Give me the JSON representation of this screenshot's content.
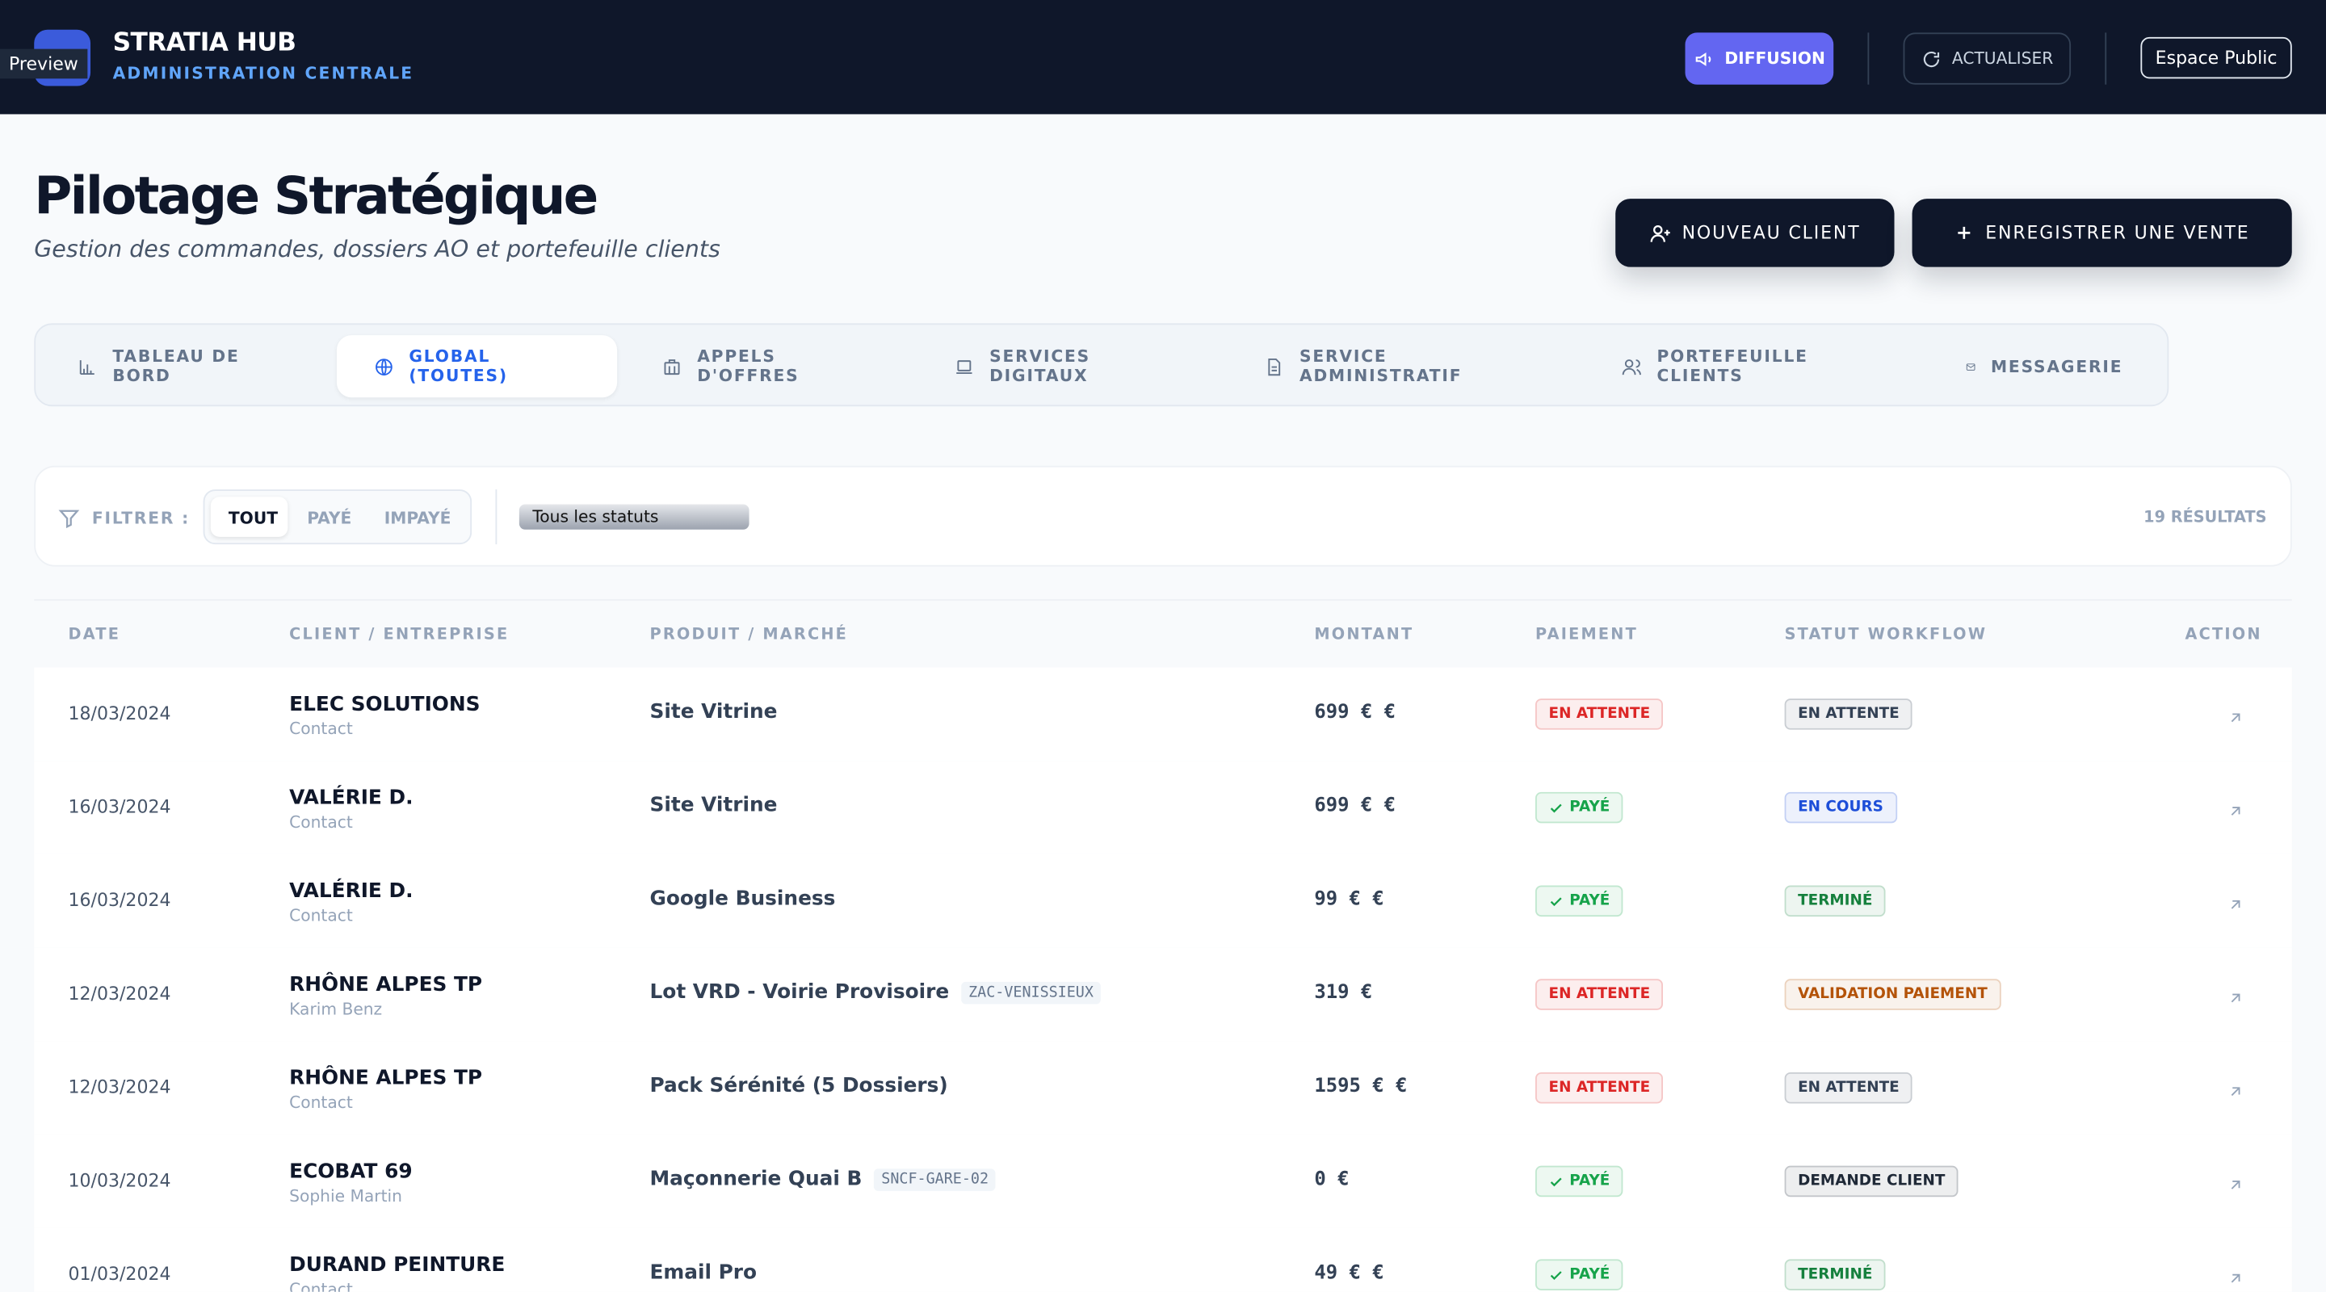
{
  "preview": "Preview",
  "header": {
    "title": "STRATIA HUB",
    "subtitle": "ADMINISTRATION CENTRALE",
    "buttons": [
      "DIFFUSION",
      "ACTUALISER",
      "Espace Public"
    ]
  },
  "page": {
    "title": "Pilotage Stratégique",
    "subtitle": "Gestion des commandes, dossiers AO et portefeuille clients",
    "actions": [
      "NOUVEAU CLIENT",
      "ENREGISTRER UNE VENTE"
    ]
  },
  "tabs": [
    "TABLEAU DE BORD",
    "GLOBAL (TOUTES)",
    "APPELS D'OFFRES",
    "SERVICES DIGITAUX",
    "SERVICE ADMINISTRATIF",
    "PORTEFEUILLE CLIENTS",
    "MESSAGERIE"
  ],
  "filter": {
    "label": "FILTRER :",
    "options": [
      "TOUT",
      "PAYÉ",
      "IMPAYÉ"
    ],
    "select": "Tous les statuts",
    "results": "19 RÉSULTATS"
  },
  "table": {
    "columns": [
      "DATE",
      "CLIENT / ENTREPRISE",
      "PRODUIT / MARCHÉ",
      "MONTANT",
      "PAIEMENT",
      "STATUT WORKFLOW",
      "ACTION"
    ],
    "rows": [
      {
        "date": "18/03/2024",
        "client": "ELEC SOLUTIONS",
        "contact": "Contact",
        "product": "Site Vitrine",
        "amount": "699 € €",
        "payment": {
          "text": "EN ATTENTE",
          "color": "#dc2626"
        },
        "workflow": {
          "text": "EN ATTENTE",
          "color": "#334155"
        }
      },
      {
        "date": "16/03/2024",
        "client": "VALÉRIE D.",
        "contact": "Contact",
        "product": "Site Vitrine",
        "amount": "699 € €",
        "payment": {
          "text": "PAYÉ",
          "color": "#16a34a",
          "check": true
        },
        "workflow": {
          "text": "EN COURS",
          "color": "#1d4ed8"
        }
      },
      {
        "date": "16/03/2024",
        "client": "VALÉRIE D.",
        "contact": "Contact",
        "product": "Google Business",
        "amount": "99 € €",
        "payment": {
          "text": "PAYÉ",
          "color": "#16a34a",
          "check": true
        },
        "workflow": {
          "text": "TERMINÉ",
          "color": "#15803d"
        }
      },
      {
        "date": "12/03/2024",
        "client": "RHÔNE ALPES TP",
        "contact": "Karim Benz",
        "product": "Lot VRD - Voirie Provisoire",
        "tag": "ZAC-VENISSIEUX",
        "amount": "319 €",
        "payment": {
          "text": "EN ATTENTE",
          "color": "#dc2626"
        },
        "workflow": {
          "text": "VALIDATION PAIEMENT",
          "color": "#b45309"
        }
      },
      {
        "date": "12/03/2024",
        "client": "RHÔNE ALPES TP",
        "contact": "Contact",
        "product": "Pack Sérénité (5 Dossiers)",
        "amount": "1595 € €",
        "payment": {
          "text": "EN ATTENTE",
          "color": "#dc2626"
        },
        "workflow": {
          "text": "EN ATTENTE",
          "color": "#334155"
        }
      },
      {
        "date": "10/03/2024",
        "client": "ECOBAT 69",
        "contact": "Sophie Martin",
        "product": "Maçonnerie Quai B",
        "tag": "SNCF-GARE-02",
        "amount": "0 €",
        "payment": {
          "text": "PAYÉ",
          "color": "#16a34a",
          "check": true
        },
        "workflow": {
          "text": "DEMANDE CLIENT",
          "color": "#1f2937"
        }
      },
      {
        "date": "01/03/2024",
        "client": "DURAND PEINTURE",
        "contact": "Contact",
        "product": "Email Pro",
        "amount": "49 € €",
        "payment": {
          "text": "PAYÉ",
          "color": "#16a34a",
          "check": true
        },
        "workflow": {
          "text": "TERMINÉ",
          "color": "#15803d"
        }
      }
    ]
  }
}
